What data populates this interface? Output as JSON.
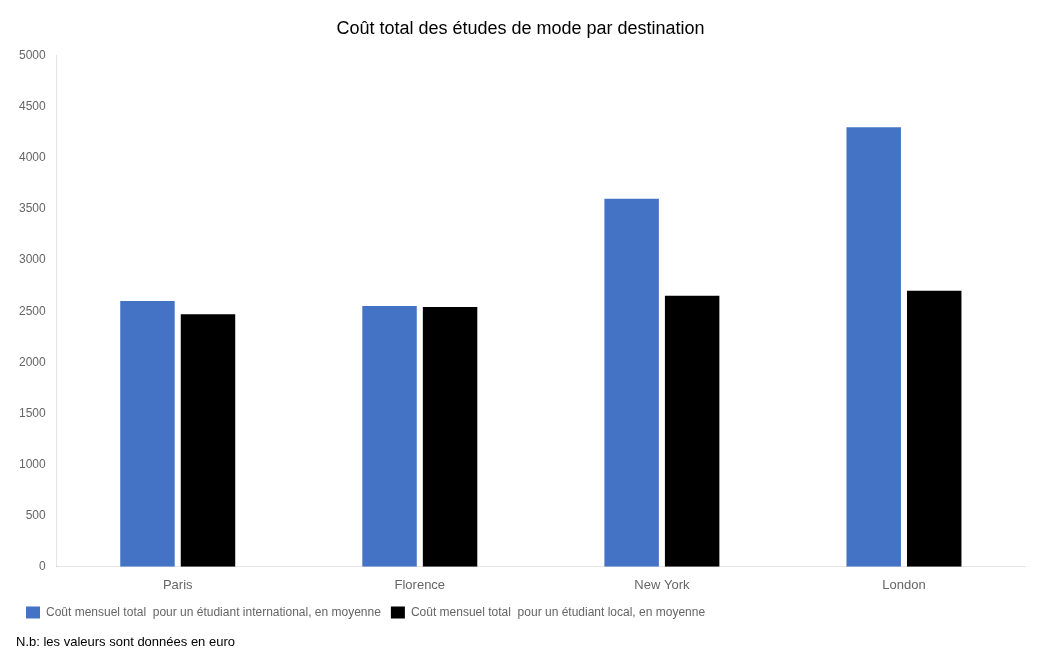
{
  "chart_data": {
    "type": "bar",
    "title": "Coût total des études de mode par destination",
    "categories": [
      "Paris",
      "Florence",
      "New York",
      "London"
    ],
    "series": [
      {
        "name": "Coût mensuel total  pour un étudiant international, en moyenne",
        "color": "#4472C4",
        "values": [
          2600,
          2550,
          3600,
          4300
        ]
      },
      {
        "name": "Coût mensuel total  pour un étudiant local, en moyenne",
        "color": "#000000",
        "values": [
          2470,
          2540,
          2650,
          2700
        ]
      }
    ],
    "ylim": [
      0,
      5000
    ],
    "yticks": [
      0,
      500,
      1000,
      1500,
      2000,
      2500,
      3000,
      3500,
      4000,
      4500,
      5000
    ],
    "grid": false,
    "legend": "bottom",
    "annotations": [
      "N.b: les valeurs sont données en euro"
    ]
  }
}
